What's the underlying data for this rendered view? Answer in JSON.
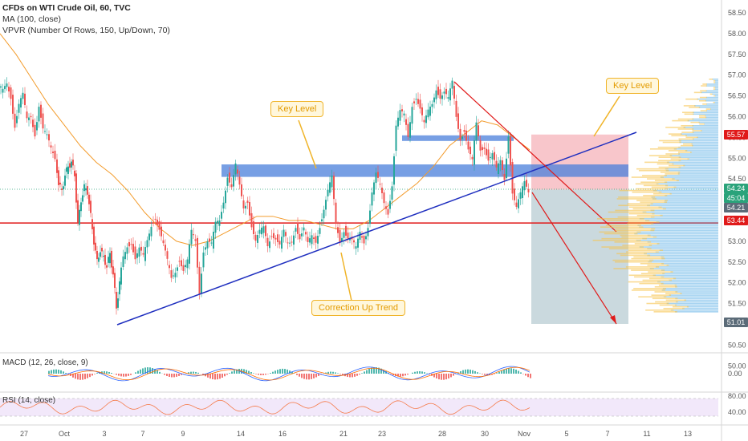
{
  "legend": {
    "title": "CFDs on WTI Crude Oil, 60, TVC",
    "ma": "MA (100, close)",
    "vpvr": "VPVR (Number Of Rows, 150, Up/Down, 70)"
  },
  "annotations": {
    "key_level_1": "Key Level",
    "key_level_2": "Key Level",
    "correction": "Correction Up Trend"
  },
  "panes": {
    "macd_title": "MACD (12, 26, close, 9)",
    "rsi_title": "RSI (14, close)"
  },
  "price_tags": {
    "resistance": "55.57",
    "current": "54.24",
    "countdown": "45:04",
    "last": "54.21",
    "support": "53.44",
    "target": "51.01"
  },
  "colors": {
    "up_candle": "#26a69a",
    "down_candle": "#ef5350",
    "ma_line": "#f39c2d",
    "trend_line": "#1f2fbf",
    "key_zone": "#4a7fdb",
    "support_line": "#e01a1a",
    "arrow": "#e01a1a",
    "stop_zone": "#f4a0a8",
    "target_zone": "#9fb9c2",
    "vpvr_up": "#5fb0e6",
    "vpvr_down": "#f7c34b",
    "callout_border": "#f0b429",
    "rsi_band": "#e9d8f7",
    "macd_line": "#2962ff",
    "signal_line": "#ff6d00",
    "rsi_line": "#f57c4c"
  },
  "chart_data": {
    "type": "candlestick",
    "title": "CFDs on WTI Crude Oil, 60, TVC",
    "price_axis_ticks": [
      "58.50",
      "58.00",
      "57.50",
      "57.00",
      "56.50",
      "56.00",
      "55.50",
      "55.00",
      "54.50",
      "54.00",
      "53.50",
      "53.00",
      "52.50",
      "52.00",
      "51.50",
      "51.00",
      "50.50",
      "50.00"
    ],
    "ylim": [
      49.8,
      58.75
    ],
    "x_tick_labels": [
      "27",
      "Oct",
      "3",
      "7",
      "9",
      "14",
      "16",
      "21",
      "23",
      "28",
      "30",
      "Nov",
      "5",
      "7",
      "11",
      "13"
    ],
    "price_path": [
      [
        0,
        56.7
      ],
      [
        5,
        56.6
      ],
      [
        10,
        56.8
      ],
      [
        15,
        56.5
      ],
      [
        20,
        55.8
      ],
      [
        25,
        56.3
      ],
      [
        30,
        56.5
      ],
      [
        35,
        55.9
      ],
      [
        40,
        56.0
      ],
      [
        45,
        55.6
      ],
      [
        50,
        56.3
      ],
      [
        55,
        55.7
      ],
      [
        60,
        55.5
      ],
      [
        65,
        55.2
      ],
      [
        70,
        55.0
      ],
      [
        74,
        54.4
      ],
      [
        78,
        54.2
      ],
      [
        82,
        54.6
      ],
      [
        86,
        54.8
      ],
      [
        90,
        54.9
      ],
      [
        94,
        54.6
      ],
      [
        98,
        53.4
      ],
      [
        102,
        54.0
      ],
      [
        106,
        54.3
      ],
      [
        110,
        54.2
      ],
      [
        114,
        53.6
      ],
      [
        118,
        53.0
      ],
      [
        122,
        52.5
      ],
      [
        126,
        52.8
      ],
      [
        130,
        52.6
      ],
      [
        134,
        52.4
      ],
      [
        138,
        52.7
      ],
      [
        142,
        52.2
      ],
      [
        146,
        51.4
      ],
      [
        150,
        52.0
      ],
      [
        155,
        52.6
      ],
      [
        160,
        52.9
      ],
      [
        165,
        53.0
      ],
      [
        170,
        52.6
      ],
      [
        175,
        52.8
      ],
      [
        180,
        52.6
      ],
      [
        185,
        53.0
      ],
      [
        190,
        53.4
      ],
      [
        195,
        53.6
      ],
      [
        200,
        53.3
      ],
      [
        205,
        52.9
      ],
      [
        210,
        52.5
      ],
      [
        215,
        52.1
      ],
      [
        220,
        52.3
      ],
      [
        225,
        52.6
      ],
      [
        230,
        52.3
      ],
      [
        235,
        52.5
      ],
      [
        240,
        53.2
      ],
      [
        245,
        53.0
      ],
      [
        250,
        51.8
      ],
      [
        255,
        52.8
      ],
      [
        260,
        53.0
      ],
      [
        265,
        52.9
      ],
      [
        270,
        53.4
      ],
      [
        275,
        53.5
      ],
      [
        280,
        54.0
      ],
      [
        285,
        54.6
      ],
      [
        290,
        54.3
      ],
      [
        295,
        54.8
      ],
      [
        300,
        54.3
      ],
      [
        305,
        53.8
      ],
      [
        310,
        54.0
      ],
      [
        315,
        53.4
      ],
      [
        320,
        53.0
      ],
      [
        325,
        53.2
      ],
      [
        330,
        53.3
      ],
      [
        335,
        52.9
      ],
      [
        340,
        53.2
      ],
      [
        345,
        53.1
      ],
      [
        350,
        52.9
      ],
      [
        355,
        53.2
      ],
      [
        360,
        52.9
      ],
      [
        365,
        53.0
      ],
      [
        370,
        53.4
      ],
      [
        375,
        53.1
      ],
      [
        380,
        53.3
      ],
      [
        385,
        52.9
      ],
      [
        390,
        53.1
      ],
      [
        395,
        53.0
      ],
      [
        400,
        53.4
      ],
      [
        405,
        53.8
      ],
      [
        410,
        54.2
      ],
      [
        415,
        54.5
      ],
      [
        420,
        53.4
      ],
      [
        425,
        53.0
      ],
      [
        430,
        53.3
      ],
      [
        435,
        53.1
      ],
      [
        440,
        53.0
      ],
      [
        445,
        52.8
      ],
      [
        450,
        53.2
      ],
      [
        455,
        53.0
      ],
      [
        460,
        53.4
      ],
      [
        465,
        54.2
      ],
      [
        470,
        54.6
      ],
      [
        475,
        54.3
      ],
      [
        480,
        53.9
      ],
      [
        485,
        53.7
      ],
      [
        490,
        54.4
      ],
      [
        495,
        55.8
      ],
      [
        500,
        56.1
      ],
      [
        505,
        56.0
      ],
      [
        510,
        55.5
      ],
      [
        515,
        56.3
      ],
      [
        520,
        56.5
      ],
      [
        525,
        56.2
      ],
      [
        530,
        55.8
      ],
      [
        535,
        56.1
      ],
      [
        540,
        56.3
      ],
      [
        545,
        56.7
      ],
      [
        550,
        56.5
      ],
      [
        555,
        56.6
      ],
      [
        560,
        56.4
      ],
      [
        565,
        56.8
      ],
      [
        570,
        56.0
      ],
      [
        575,
        55.5
      ],
      [
        580,
        55.7
      ],
      [
        585,
        55.2
      ],
      [
        590,
        54.9
      ],
      [
        595,
        55.8
      ],
      [
        600,
        55.2
      ],
      [
        605,
        55.3
      ],
      [
        610,
        55.0
      ],
      [
        615,
        55.1
      ],
      [
        620,
        54.7
      ],
      [
        625,
        54.9
      ],
      [
        630,
        54.5
      ],
      [
        635,
        55.6
      ],
      [
        640,
        54.2
      ],
      [
        645,
        53.8
      ],
      [
        650,
        54.1
      ],
      [
        655,
        54.4
      ],
      [
        660,
        54.21
      ]
    ],
    "ma_path": [
      [
        0,
        58.0
      ],
      [
        20,
        57.5
      ],
      [
        40,
        56.9
      ],
      [
        60,
        56.3
      ],
      [
        80,
        55.8
      ],
      [
        100,
        55.3
      ],
      [
        120,
        54.9
      ],
      [
        140,
        54.6
      ],
      [
        160,
        54.2
      ],
      [
        180,
        53.7
      ],
      [
        200,
        53.3
      ],
      [
        220,
        53.0
      ],
      [
        240,
        52.9
      ],
      [
        260,
        53.0
      ],
      [
        280,
        53.2
      ],
      [
        300,
        53.4
      ],
      [
        320,
        53.6
      ],
      [
        340,
        53.6
      ],
      [
        360,
        53.5
      ],
      [
        380,
        53.5
      ],
      [
        400,
        53.4
      ],
      [
        420,
        53.3
      ],
      [
        440,
        53.3
      ],
      [
        460,
        53.5
      ],
      [
        480,
        53.8
      ],
      [
        500,
        54.1
      ],
      [
        520,
        54.4
      ],
      [
        540,
        54.8
      ],
      [
        560,
        55.3
      ],
      [
        580,
        55.6
      ],
      [
        600,
        55.9
      ],
      [
        620,
        55.8
      ],
      [
        640,
        55.5
      ],
      [
        660,
        55.2
      ]
    ],
    "levels": {
      "key_zone_1": [
        54.55,
        54.85
      ],
      "key_zone_2": [
        55.45,
        55.55
      ],
      "support": 53.44,
      "current": 54.21,
      "stop_zone": [
        54.24,
        55.57
      ],
      "target_zone": [
        51.01,
        54.24
      ]
    },
    "macd": {
      "axis_ticks": [
        "0.00"
      ]
    },
    "rsi": {
      "axis_ticks": [
        "80.00",
        "40.00"
      ]
    }
  }
}
